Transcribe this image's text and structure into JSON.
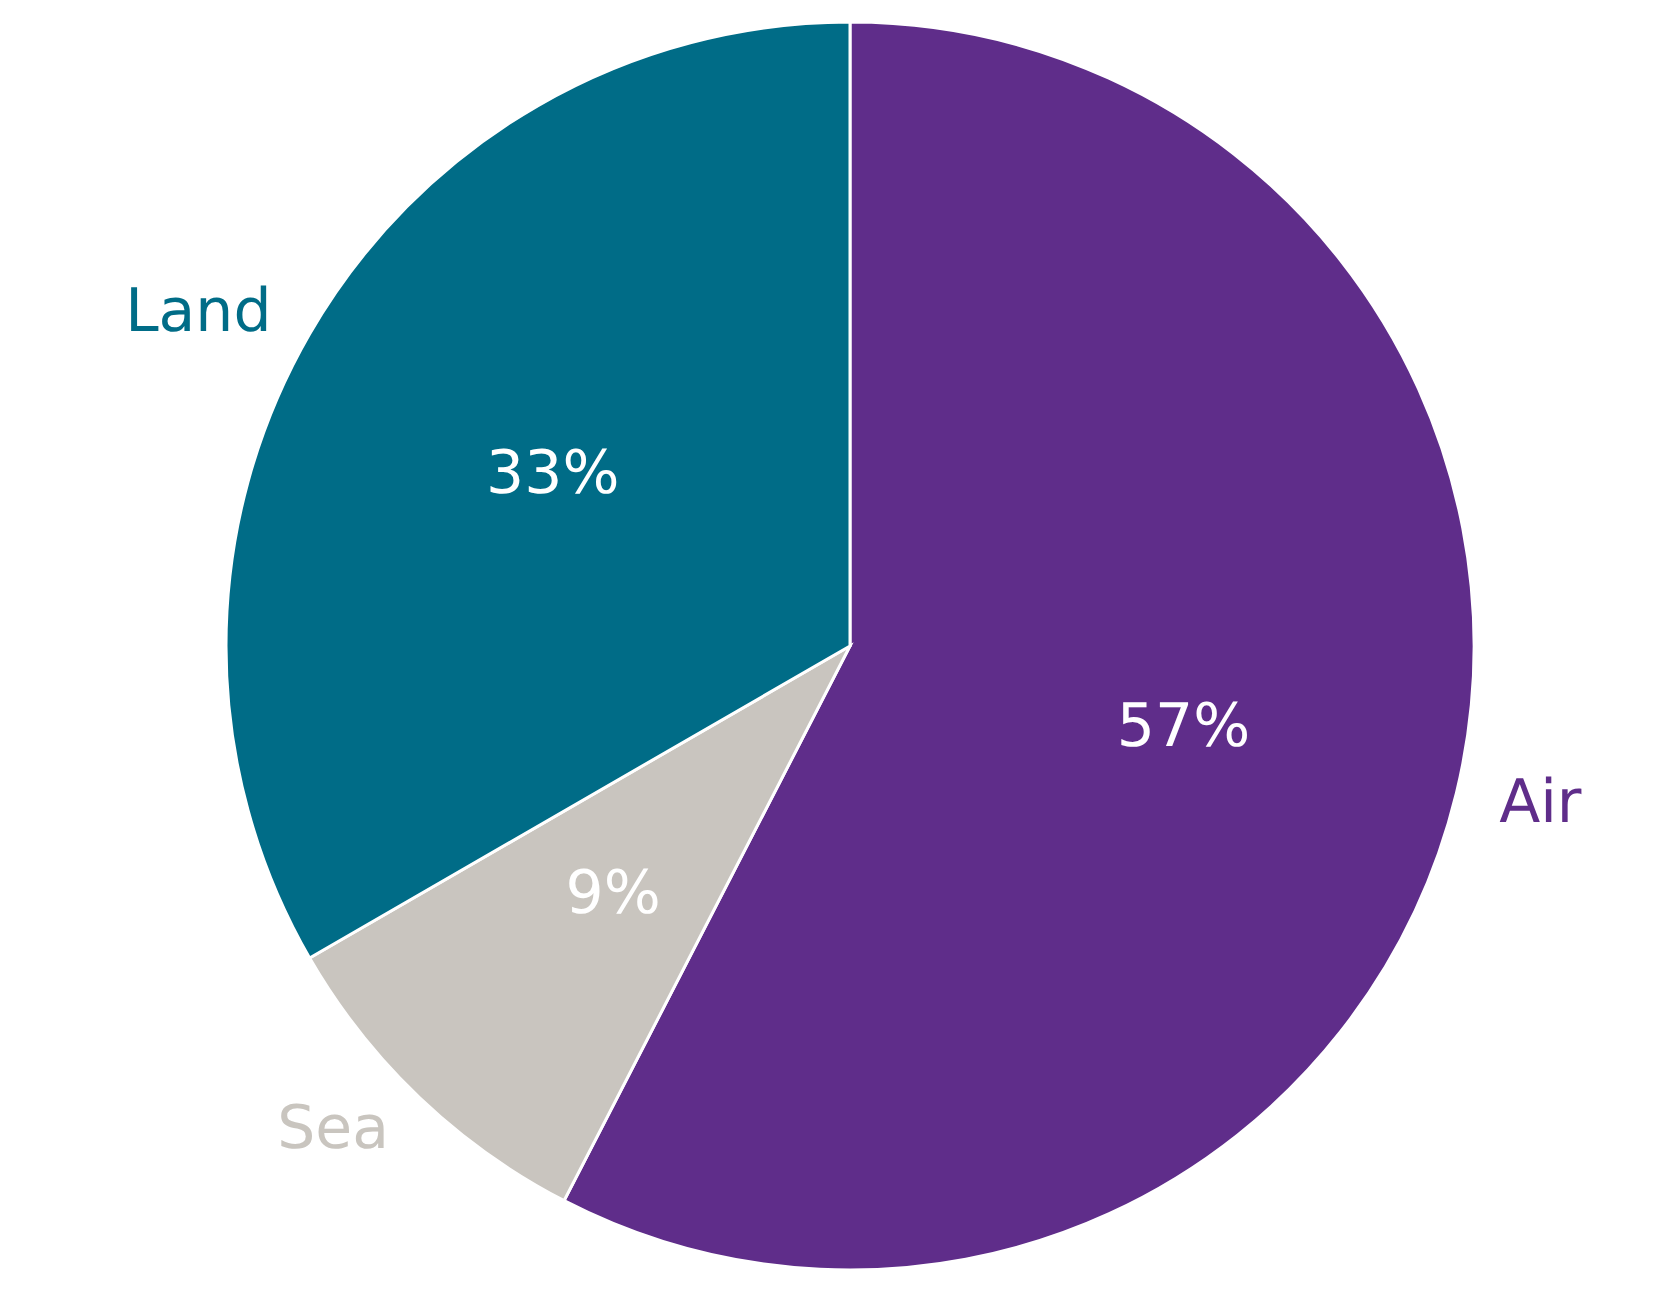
{
  "chart_data": {
    "type": "pie",
    "categories": [
      "Air",
      "Sea",
      "Land"
    ],
    "values": [
      57,
      9,
      33
    ],
    "colors": [
      "#5f2d8a",
      "#c9c5bf",
      "#006c87"
    ],
    "value_labels": [
      "57%",
      "9%",
      "33%"
    ]
  }
}
